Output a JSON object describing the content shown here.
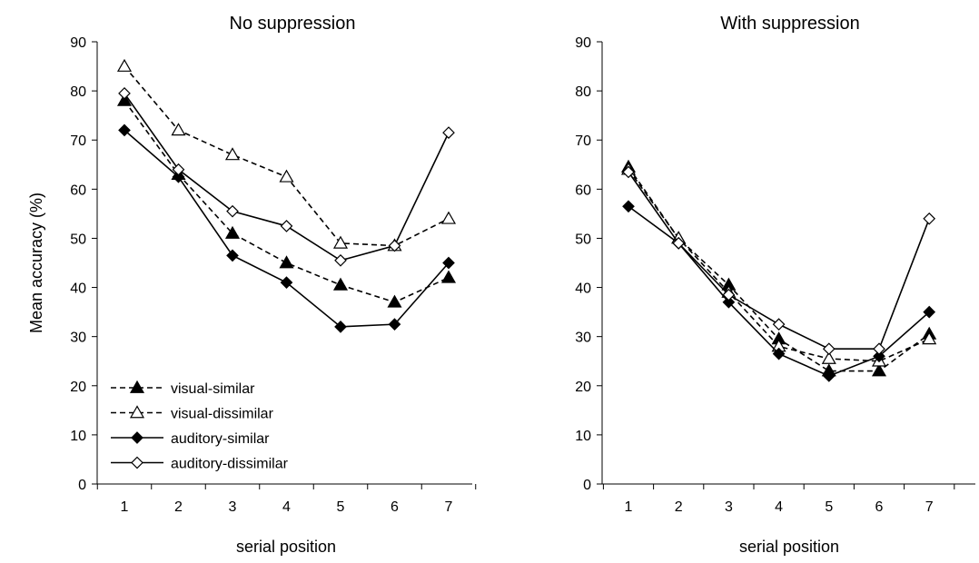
{
  "chart_data": [
    {
      "type": "line",
      "title": "No suppression",
      "xlabel": "serial position",
      "ylabel": "Mean accuracy (%)",
      "x": [
        1,
        2,
        3,
        4,
        5,
        6,
        7
      ],
      "ylim": [
        0,
        90
      ],
      "yticks": [
        0,
        10,
        20,
        30,
        40,
        50,
        60,
        70,
        80,
        90
      ],
      "grid": false,
      "legend": "bottom-left",
      "series": [
        {
          "name": "visual-similar",
          "dash": "dashed",
          "marker": "triangle",
          "filled": true,
          "values": [
            78,
            63,
            51,
            45,
            40.5,
            37,
            42
          ]
        },
        {
          "name": "visual-dissimilar",
          "dash": "dashed",
          "marker": "triangle",
          "filled": false,
          "values": [
            85,
            72,
            67,
            62.5,
            49,
            48.5,
            54
          ]
        },
        {
          "name": "auditory-similar",
          "dash": "solid",
          "marker": "diamond",
          "filled": true,
          "values": [
            72,
            62.5,
            46.5,
            41,
            32,
            32.5,
            45
          ]
        },
        {
          "name": "auditory-dissimilar",
          "dash": "solid",
          "marker": "diamond",
          "filled": false,
          "values": [
            79.5,
            64,
            55.5,
            52.5,
            45.5,
            48.5,
            71.5
          ]
        }
      ]
    },
    {
      "type": "line",
      "title": "With suppression",
      "xlabel": "serial position",
      "ylabel": "",
      "x": [
        1,
        2,
        3,
        4,
        5,
        6,
        7
      ],
      "ylim": [
        0,
        90
      ],
      "yticks": [
        0,
        10,
        20,
        30,
        40,
        50,
        60,
        70,
        80,
        90
      ],
      "grid": false,
      "legend": "",
      "series": [
        {
          "dash": "dashed",
          "marker": "triangle",
          "filled": true,
          "values": [
            64.5,
            50,
            40.5,
            29.5,
            23,
            23,
            30.5
          ]
        },
        {
          "dash": "dashed",
          "marker": "triangle",
          "filled": false,
          "values": [
            64,
            50,
            39,
            28,
            25.5,
            25,
            29.5
          ]
        },
        {
          "dash": "solid",
          "marker": "diamond",
          "filled": true,
          "values": [
            56.5,
            49,
            37,
            26.5,
            22,
            26,
            35
          ]
        },
        {
          "dash": "solid",
          "marker": "diamond",
          "filled": false,
          "values": [
            63.5,
            49,
            38.5,
            32.5,
            27.5,
            27.5,
            54
          ]
        }
      ]
    }
  ]
}
